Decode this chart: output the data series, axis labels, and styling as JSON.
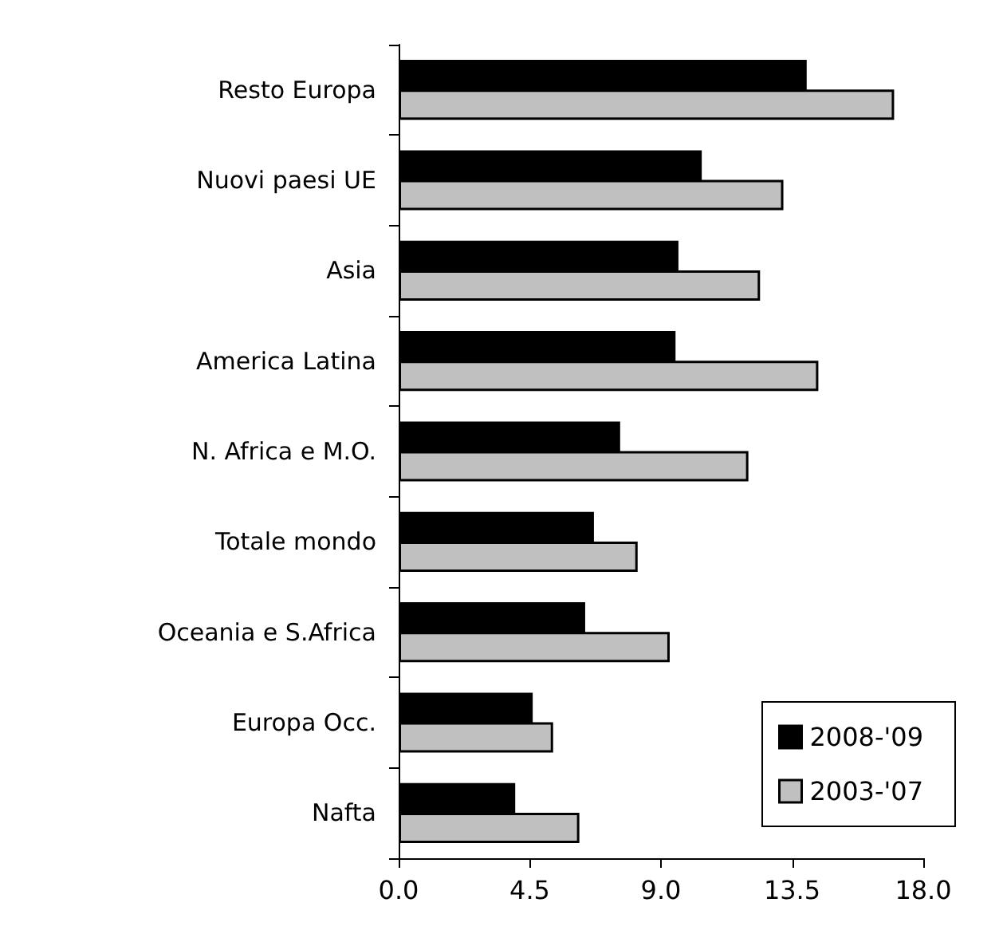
{
  "chart_data": {
    "type": "bar",
    "orientation": "horizontal",
    "categories": [
      "Resto Europa",
      "Nuovi paesi UE",
      "Asia",
      "America Latina",
      "N. Africa e M.O.",
      "Totale mondo",
      "Oceania e S.Africa",
      "Europa Occ.",
      "Nafta"
    ],
    "series": [
      {
        "name": "2008-'09",
        "color": "#000000",
        "values": [
          14.0,
          10.4,
          9.6,
          9.5,
          7.6,
          6.7,
          6.4,
          4.6,
          4.0
        ]
      },
      {
        "name": "2003-'07",
        "color": "#c0c0c0",
        "values": [
          17.0,
          13.2,
          12.4,
          14.4,
          12.0,
          8.2,
          9.3,
          5.3,
          6.2
        ]
      }
    ],
    "xlim": [
      0,
      18
    ],
    "xticks": [
      {
        "value": 0,
        "label": "0.0"
      },
      4.5,
      {
        "value": 9,
        "label": "9.0"
      },
      13.5,
      {
        "value": 18,
        "label": "18.0"
      }
    ],
    "grid": false,
    "legend": "bottom right"
  }
}
